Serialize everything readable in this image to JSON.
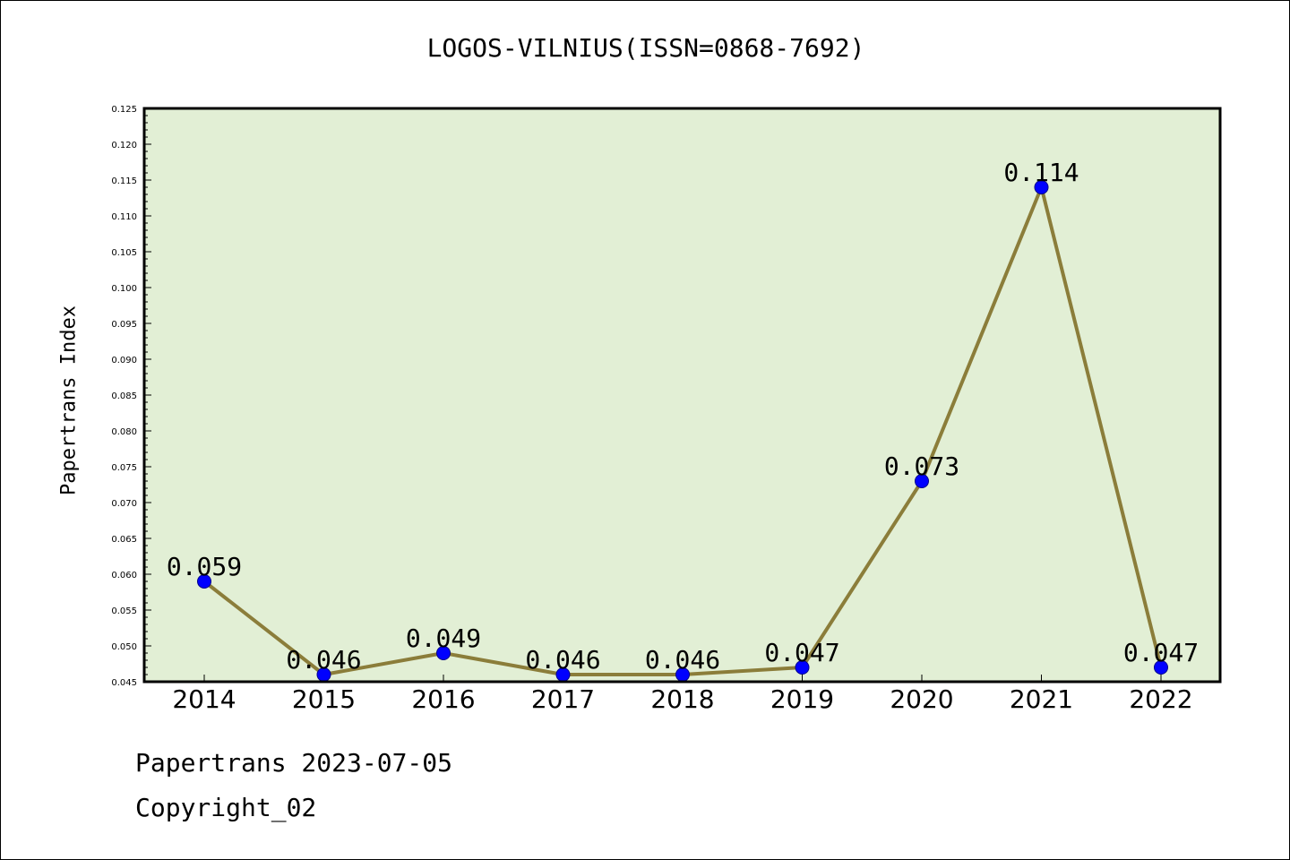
{
  "chart_data": {
    "type": "line",
    "title": "LOGOS-VILNIUS(ISSN=0868-7692)",
    "xlabel": "",
    "ylabel": "Papertrans Index",
    "categories": [
      "2014",
      "2015",
      "2016",
      "2017",
      "2018",
      "2019",
      "2020",
      "2021",
      "2022"
    ],
    "series": [
      {
        "values": [
          0.059,
          0.046,
          0.049,
          0.046,
          0.046,
          0.047,
          0.073,
          0.114,
          0.047
        ],
        "data_labels": [
          "0.059",
          "0.046",
          "0.049",
          "0.046",
          "0.046",
          "0.047",
          "0.073",
          "0.114",
          "0.047"
        ]
      }
    ],
    "ylim": [
      0.045,
      0.125
    ],
    "yticks": [
      "0.045",
      "0.050",
      "0.055",
      "0.060",
      "0.065",
      "0.070",
      "0.075",
      "0.080",
      "0.085",
      "0.090",
      "0.095",
      "0.100",
      "0.105",
      "0.110",
      "0.115",
      "0.120",
      "0.125"
    ],
    "grid": false,
    "legend": "none"
  },
  "footer": {
    "date_line": "Papertrans 2023-07-05",
    "copyright_line": "Copyright_02"
  },
  "colors": {
    "plot_background": "#e2efd5",
    "line": "#8b7d3a",
    "marker": "#0000ff",
    "marker_edge": "#00008b"
  }
}
